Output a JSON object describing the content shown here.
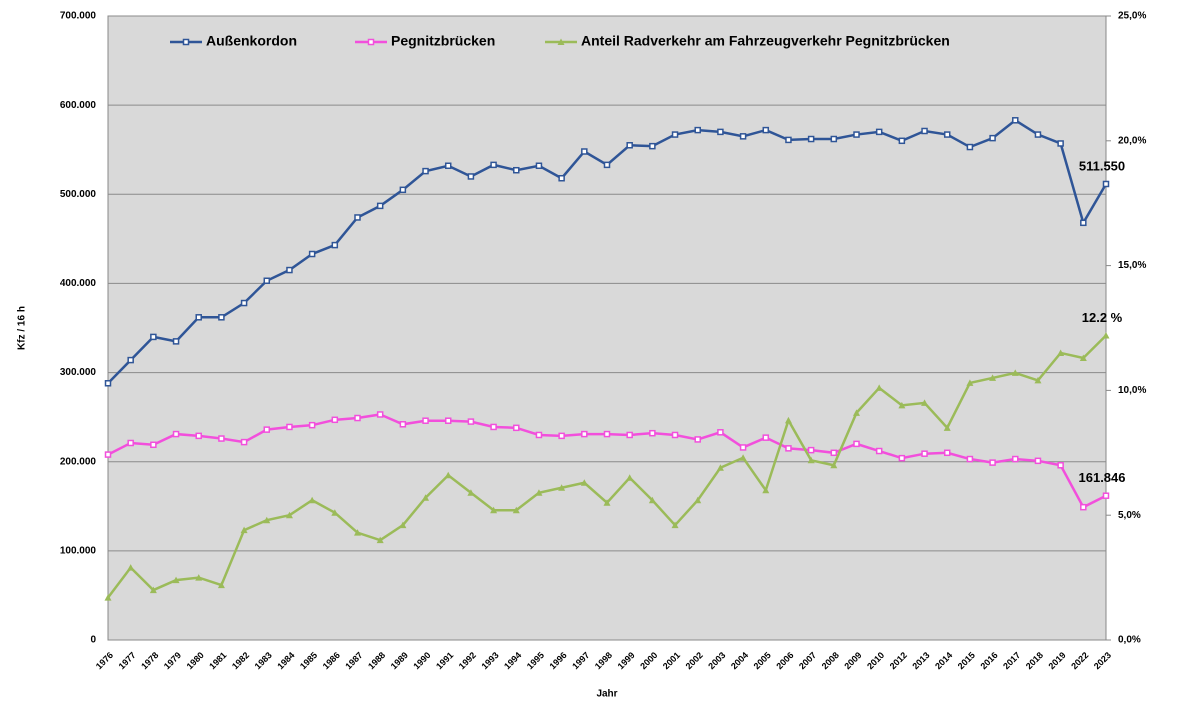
{
  "chart_data": {
    "type": "line",
    "y_label": "Kfz / 16 h",
    "x_label": "Jahr",
    "categories": [
      "1976",
      "1977",
      "1978",
      "1979",
      "1980",
      "1981",
      "1982",
      "1983",
      "1984",
      "1985",
      "1986",
      "1987",
      "1988",
      "1989",
      "1990",
      "1991",
      "1992",
      "1993",
      "1994",
      "1995",
      "1996",
      "1997",
      "1998",
      "1999",
      "2000",
      "2001",
      "2002",
      "2003",
      "2004",
      "2005",
      "2006",
      "2007",
      "2008",
      "2009",
      "2010",
      "2012",
      "2013",
      "2014",
      "2015",
      "2016",
      "2017",
      "2018",
      "2019",
      "2022",
      "2023"
    ],
    "series": [
      {
        "name": "Außenkordon",
        "color": "#2f5597",
        "marker": "square",
        "values": [
          288000,
          314000,
          340000,
          335000,
          362000,
          362000,
          378000,
          403000,
          415000,
          433000,
          443000,
          474000,
          487000,
          505000,
          526000,
          532000,
          520000,
          533000,
          527000,
          532000,
          518000,
          548000,
          533000,
          555000,
          554000,
          567000,
          572000,
          570000,
          565000,
          572000,
          561000,
          562000,
          562000,
          567000,
          570000,
          560000,
          571000,
          567000,
          553000,
          563000,
          583000,
          567000,
          557000,
          468000,
          511550
        ],
        "value_labels": [
          null,
          null,
          null,
          null,
          null,
          null,
          null,
          null,
          null,
          null,
          null,
          null,
          null,
          null,
          null,
          null,
          null,
          null,
          null,
          null,
          null,
          null,
          null,
          null,
          null,
          null,
          null,
          null,
          null,
          null,
          null,
          null,
          null,
          null,
          null,
          null,
          null,
          null,
          null,
          null,
          null,
          null,
          null,
          null,
          "511.550"
        ]
      },
      {
        "name": "Pegnitzbrücken",
        "color": "#f24fdc",
        "marker": "square",
        "values": [
          208000,
          221000,
          219000,
          231000,
          229000,
          226000,
          222000,
          236000,
          239000,
          241000,
          247000,
          249000,
          253000,
          242000,
          246000,
          246000,
          245000,
          239000,
          238000,
          230000,
          229000,
          231000,
          231000,
          230000,
          232000,
          230000,
          225000,
          233000,
          216000,
          227000,
          215000,
          213000,
          210000,
          220000,
          212000,
          204000,
          209000,
          210000,
          203000,
          199000,
          203000,
          201000,
          196000,
          149000,
          161846
        ],
        "value_labels": [
          null,
          null,
          null,
          null,
          null,
          null,
          null,
          null,
          null,
          null,
          null,
          null,
          null,
          null,
          null,
          null,
          null,
          null,
          null,
          null,
          null,
          null,
          null,
          null,
          null,
          null,
          null,
          null,
          null,
          null,
          null,
          null,
          null,
          null,
          null,
          null,
          null,
          null,
          null,
          null,
          null,
          null,
          null,
          null,
          "161.846"
        ]
      },
      {
        "name": "Anteil  Radverkehr am Fahrzeugverkehr Pegnitzbrücken",
        "color": "#9bbb59",
        "marker": "triangle",
        "axis": "y2",
        "values": [
          1.7,
          2.9,
          2.0,
          2.4,
          2.5,
          2.2,
          4.4,
          4.8,
          5.0,
          5.6,
          5.1,
          4.3,
          4.0,
          4.6,
          5.7,
          6.6,
          5.9,
          5.2,
          5.2,
          5.9,
          6.1,
          6.3,
          5.5,
          6.5,
          5.6,
          4.6,
          5.6,
          6.9,
          7.3,
          6.0,
          8.8,
          7.2,
          7.0,
          9.1,
          10.1,
          9.4,
          9.5,
          8.5,
          10.3,
          10.5,
          10.7,
          10.4,
          11.5,
          11.3,
          12.2
        ],
        "value_labels": [
          null,
          null,
          null,
          null,
          null,
          null,
          null,
          null,
          null,
          null,
          null,
          null,
          null,
          null,
          null,
          null,
          null,
          null,
          null,
          null,
          null,
          null,
          null,
          null,
          null,
          null,
          null,
          null,
          null,
          null,
          null,
          null,
          null,
          null,
          null,
          null,
          null,
          null,
          null,
          null,
          null,
          null,
          null,
          null,
          "12.2 %"
        ]
      }
    ],
    "ylim": [
      0,
      700000
    ],
    "yticks": [
      0,
      {
        "value": 100000,
        "label": "100.000"
      },
      {
        "value": 200000,
        "label": "200.000"
      },
      {
        "value": 300000,
        "label": "300.000"
      },
      {
        "value": 400000,
        "label": "400.000"
      },
      {
        "value": 500000,
        "label": "500.000"
      },
      {
        "value": 600000,
        "label": "600.000"
      },
      {
        "value": 700000,
        "label": "700.000"
      }
    ],
    "y2lim": [
      0,
      25
    ],
    "y2ticks": [
      {
        "value": 0,
        "label": "0,0%"
      },
      {
        "value": 5,
        "label": "5,0%"
      },
      {
        "value": 10,
        "label": "10,0%"
      },
      {
        "value": 15,
        "label": "15,0%"
      },
      {
        "value": 20,
        "label": "20,0%"
      },
      {
        "value": 25,
        "label": "25,0%"
      }
    ],
    "grid": true,
    "legend": "top"
  }
}
